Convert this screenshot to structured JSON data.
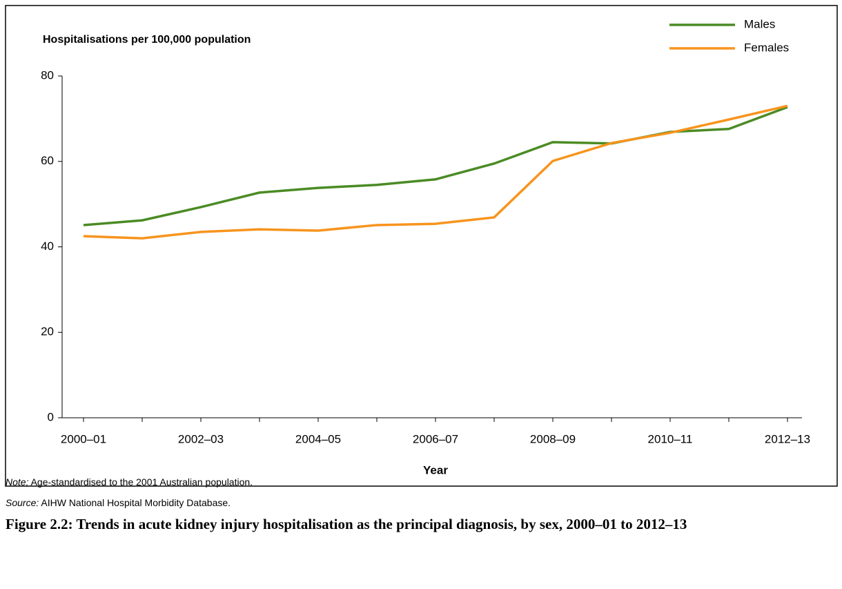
{
  "chart_data": {
    "type": "line",
    "y_axis_title": "Hospitalisations per 100,000 population",
    "x_axis_title": "Year",
    "categories": [
      "2000–01",
      null,
      "2002–03",
      null,
      "2004–05",
      null,
      "2006–07",
      null,
      "2008–09",
      null,
      "2010–11",
      null,
      "2012–13"
    ],
    "series": [
      {
        "name": "Males",
        "color": "#4b8b24",
        "values": [
          45.1,
          46.2,
          49.3,
          52.7,
          53.8,
          54.5,
          55.8,
          59.5,
          64.5,
          64.2,
          66.9,
          67.6,
          72.7
        ]
      },
      {
        "name": "Females",
        "color": "#f7941d",
        "values": [
          42.5,
          42.0,
          43.5,
          44.1,
          43.8,
          45.1,
          45.4,
          46.9,
          60.1,
          64.3,
          66.7,
          69.8,
          73.0
        ]
      }
    ],
    "ylim": [
      0,
      80
    ],
    "yticks": [
      0,
      20,
      40,
      60,
      80
    ],
    "grid": false,
    "legend": "top-right"
  },
  "notes": {
    "note_label": "Note:",
    "note_text": "Age-standardised to the 2001 Australian population.",
    "source_label": "Source:",
    "source_text": "AIHW National Hospital Morbidity Database."
  },
  "caption": "Figure 2.2: Trends in acute kidney injury hospitalisation as the principal diagnosis, by sex, 2000–01 to 2012–13"
}
